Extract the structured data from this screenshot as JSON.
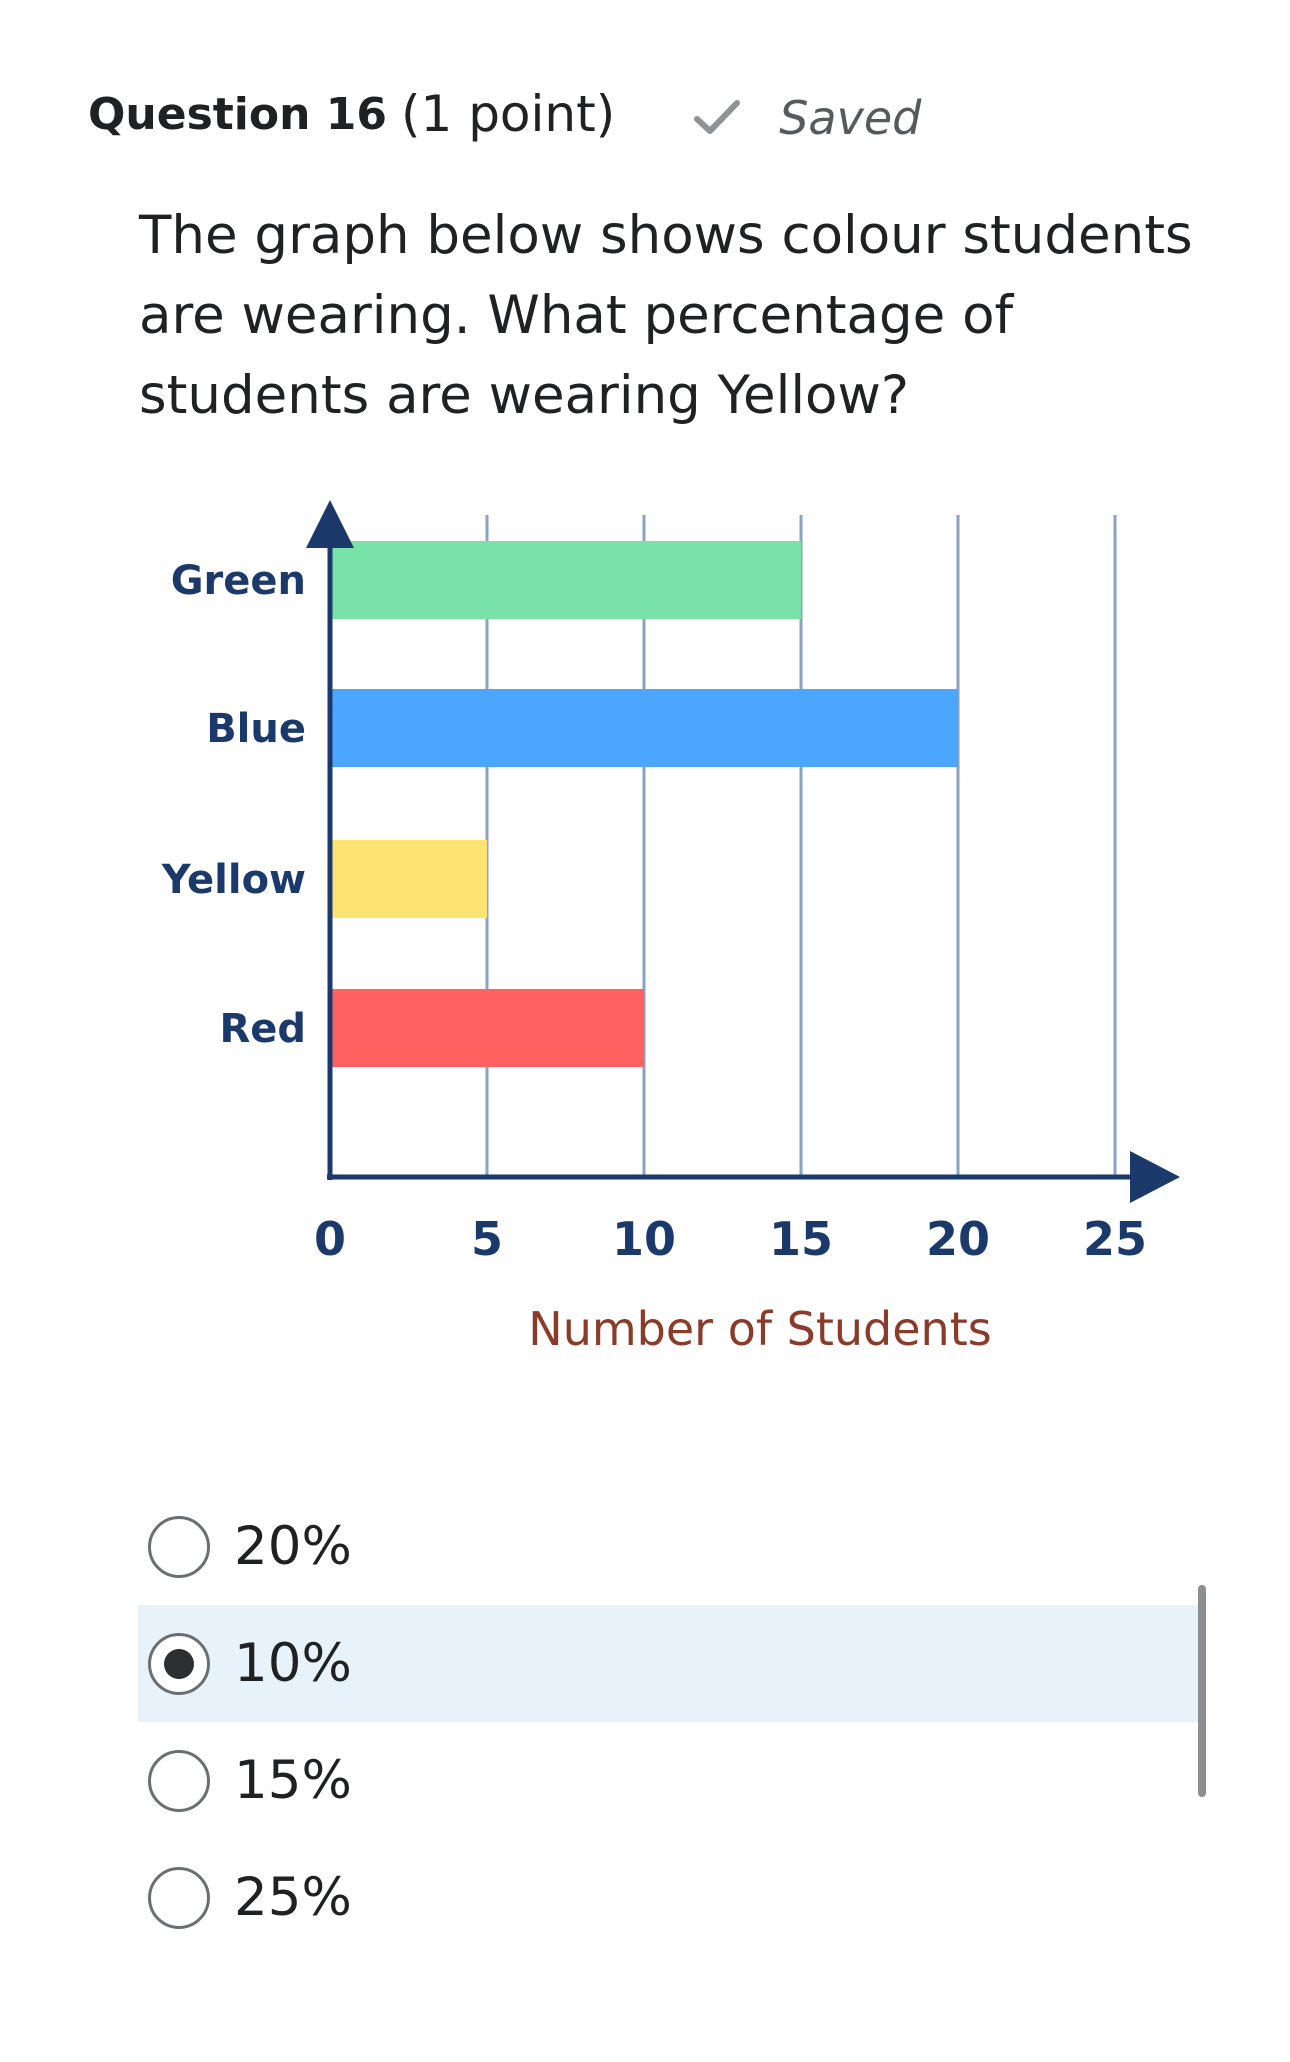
{
  "question": {
    "number_label": "Question 16",
    "points_label": "(1 point)",
    "status_icon": "check-icon",
    "status_text": "Saved",
    "prompt": "The graph below shows colour students are wearing. What percentage of students are wearing Yellow?"
  },
  "chart_data": {
    "type": "bar",
    "orientation": "horizontal",
    "categories": [
      "Green",
      "Blue",
      "Yellow",
      "Red"
    ],
    "values": [
      15,
      20,
      5,
      10
    ],
    "colors": [
      "#79e2a8",
      "#4aa6ff",
      "#ffe372",
      "#ff6060"
    ],
    "xlabel": "Number of Students",
    "ylabel": "",
    "xlim": [
      0,
      25
    ],
    "xticks": [
      0,
      5,
      10,
      15,
      20,
      25
    ],
    "grid": true,
    "axis_color": "#1b3a6b",
    "grid_color": "#8aa3c2"
  },
  "options": [
    {
      "label": "20%",
      "selected": false
    },
    {
      "label": "10%",
      "selected": true
    },
    {
      "label": "15%",
      "selected": false
    },
    {
      "label": "25%",
      "selected": false
    }
  ]
}
